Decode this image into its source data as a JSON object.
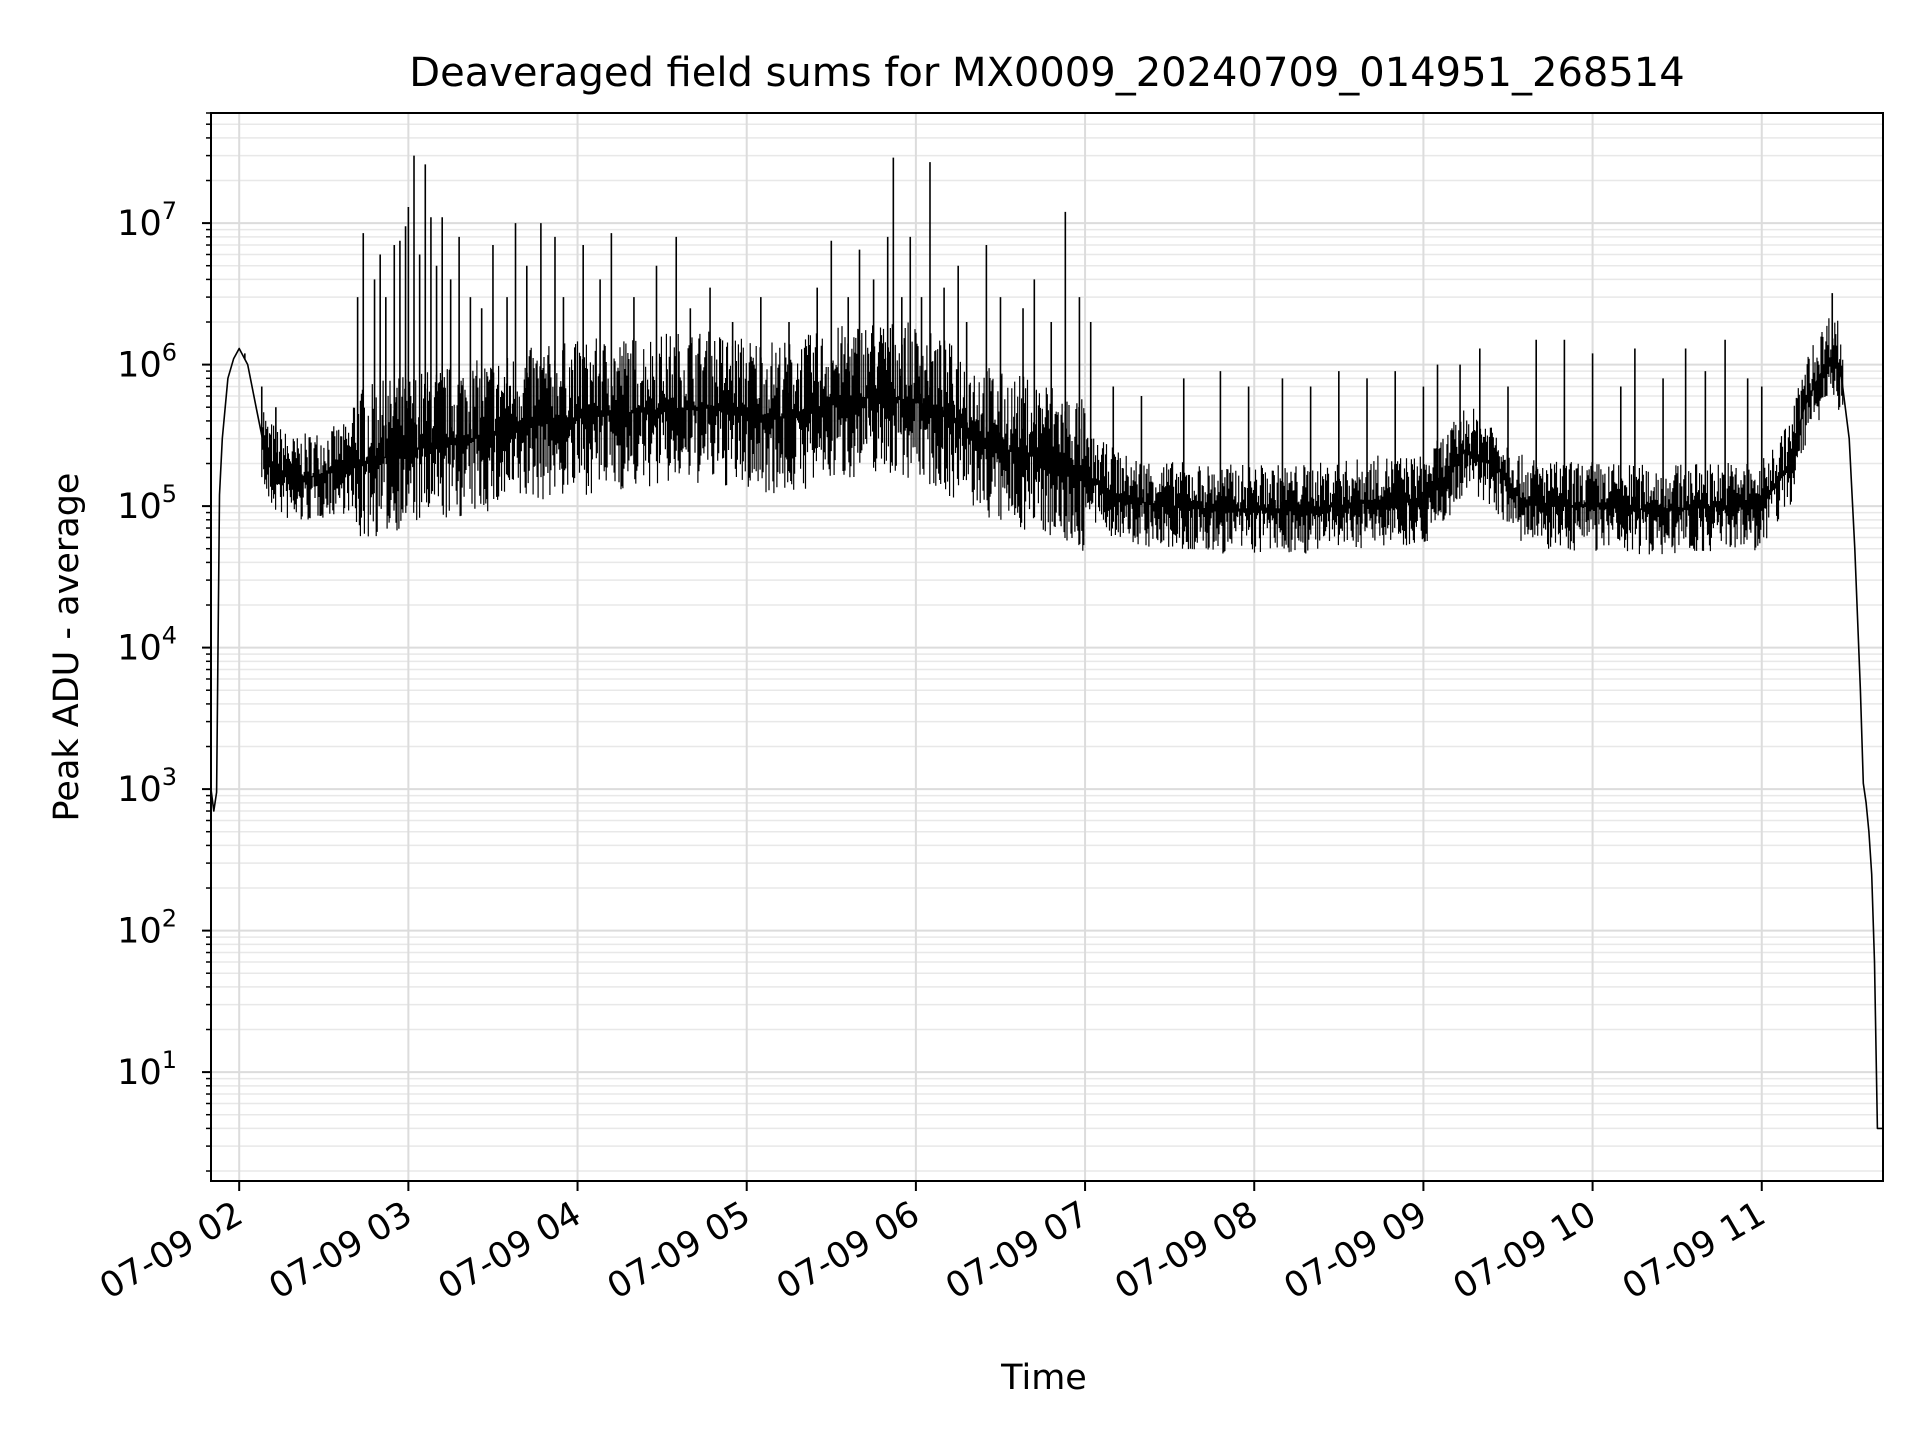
{
  "chart_data": {
    "type": "line",
    "title": "Deaveraged field sums for MX0009_20240709_014951_268514",
    "xlabel": "Time",
    "ylabel": "Peak ADU - average",
    "yscale": "log",
    "ylim": [
      1.7,
      60000000
    ],
    "xlim": [
      "07-09 01:50",
      "07-09 11:43"
    ],
    "grid": true,
    "line_color": "#000000",
    "x_ticks": [
      {
        "label": "07-09 02",
        "time": "07-09 02:00"
      },
      {
        "label": "07-09 03",
        "time": "07-09 03:00"
      },
      {
        "label": "07-09 04",
        "time": "07-09 04:00"
      },
      {
        "label": "07-09 05",
        "time": "07-09 05:00"
      },
      {
        "label": "07-09 06",
        "time": "07-09 06:00"
      },
      {
        "label": "07-09 07",
        "time": "07-09 07:00"
      },
      {
        "label": "07-09 08",
        "time": "07-09 08:00"
      },
      {
        "label": "07-09 09",
        "time": "07-09 09:00"
      },
      {
        "label": "07-09 10",
        "time": "07-09 10:00"
      },
      {
        "label": "07-09 11",
        "time": "07-09 11:00"
      }
    ],
    "y_ticks": [
      {
        "base": "10",
        "exp": "1",
        "value": 10
      },
      {
        "base": "10",
        "exp": "2",
        "value": 100
      },
      {
        "base": "10",
        "exp": "3",
        "value": 1000
      },
      {
        "base": "10",
        "exp": "4",
        "value": 10000
      },
      {
        "base": "10",
        "exp": "5",
        "value": 100000
      },
      {
        "base": "10",
        "exp": "6",
        "value": 1000000
      },
      {
        "base": "10",
        "exp": "7",
        "value": 10000000
      }
    ],
    "series": [
      {
        "points": [
          [
            "07-09 01:50",
            1000
          ],
          [
            "07-09 01:51",
            700
          ],
          [
            "07-09 01:52",
            950
          ],
          [
            "07-09 01:53",
            120000
          ],
          [
            "07-09 01:54",
            300000
          ],
          [
            "07-09 01:56",
            800000
          ],
          [
            "07-09 01:58",
            1100000
          ],
          [
            "07-09 02:00",
            1300000
          ],
          [
            "07-09 02:03",
            1000000
          ],
          [
            "07-09 02:06",
            500000
          ],
          [
            "07-09 02:10",
            200000
          ],
          [
            "07-09 02:20",
            150000
          ],
          [
            "07-09 02:30",
            170000
          ],
          [
            "07-09 02:45",
            200000
          ],
          [
            "07-09 03:00",
            250000
          ],
          [
            "07-09 03:15",
            280000
          ],
          [
            "07-09 03:30",
            320000
          ],
          [
            "07-09 03:45",
            380000
          ],
          [
            "07-09 04:00",
            420000
          ],
          [
            "07-09 04:15",
            450000
          ],
          [
            "07-09 04:30",
            480000
          ],
          [
            "07-09 04:45",
            500000
          ],
          [
            "07-09 05:00",
            450000
          ],
          [
            "07-09 05:15",
            420000
          ],
          [
            "07-09 05:30",
            520000
          ],
          [
            "07-09 05:45",
            600000
          ],
          [
            "07-09 06:00",
            550000
          ],
          [
            "07-09 06:15",
            380000
          ],
          [
            "07-09 06:30",
            250000
          ],
          [
            "07-09 06:45",
            230000
          ],
          [
            "07-09 07:00",
            160000
          ],
          [
            "07-09 07:15",
            110000
          ],
          [
            "07-09 07:30",
            100000
          ],
          [
            "07-09 07:45",
            95000
          ],
          [
            "07-09 08:00",
            95000
          ],
          [
            "07-09 08:15",
            95000
          ],
          [
            "07-09 08:30",
            100000
          ],
          [
            "07-09 08:45",
            110000
          ],
          [
            "07-09 09:00",
            110000
          ],
          [
            "07-09 09:10",
            180000
          ],
          [
            "07-09 09:15",
            250000
          ],
          [
            "07-09 09:25",
            200000
          ],
          [
            "07-09 09:35",
            110000
          ],
          [
            "07-09 09:45",
            100000
          ],
          [
            "07-09 10:00",
            100000
          ],
          [
            "07-09 10:15",
            95000
          ],
          [
            "07-09 10:30",
            95000
          ],
          [
            "07-09 10:45",
            100000
          ],
          [
            "07-09 11:00",
            100000
          ],
          [
            "07-09 11:10",
            200000
          ],
          [
            "07-09 11:15",
            500000
          ],
          [
            "07-09 11:20",
            800000
          ],
          [
            "07-09 11:24",
            1100000
          ],
          [
            "07-09 11:26",
            1150000
          ],
          [
            "07-09 11:28",
            900000
          ],
          [
            "07-09 11:31",
            300000
          ],
          [
            "07-09 11:33",
            50000
          ],
          [
            "07-09 11:35",
            5000
          ],
          [
            "07-09 11:36",
            1100
          ],
          [
            "07-09 11:37",
            800
          ],
          [
            "07-09 11:38",
            500
          ],
          [
            "07-09 11:39",
            250
          ],
          [
            "07-09 11:40",
            60
          ],
          [
            "07-09 11:41",
            4
          ],
          [
            "07-09 11:43",
            4
          ]
        ],
        "spikes": [
          [
            "07-09 02:02",
            1200000
          ],
          [
            "07-09 02:08",
            700000
          ],
          [
            "07-09 02:13",
            500000
          ],
          [
            "07-09 02:42",
            3000000
          ],
          [
            "07-09 02:44",
            8500000
          ],
          [
            "07-09 02:48",
            4000000
          ],
          [
            "07-09 02:50",
            6000000
          ],
          [
            "07-09 02:52",
            3000000
          ],
          [
            "07-09 02:55",
            7000000
          ],
          [
            "07-09 02:57",
            7500000
          ],
          [
            "07-09 02:59",
            9500000
          ],
          [
            "07-09 03:00",
            13000000
          ],
          [
            "07-09 03:02",
            30000000
          ],
          [
            "07-09 03:04",
            6000000
          ],
          [
            "07-09 03:06",
            26000000
          ],
          [
            "07-09 03:08",
            11000000
          ],
          [
            "07-09 03:10",
            5000000
          ],
          [
            "07-09 03:12",
            11000000
          ],
          [
            "07-09 03:15",
            4000000
          ],
          [
            "07-09 03:18",
            8000000
          ],
          [
            "07-09 03:22",
            3000000
          ],
          [
            "07-09 03:26",
            2500000
          ],
          [
            "07-09 03:30",
            7000000
          ],
          [
            "07-09 03:35",
            3000000
          ],
          [
            "07-09 03:38",
            10000000
          ],
          [
            "07-09 03:42",
            5000000
          ],
          [
            "07-09 03:47",
            10000000
          ],
          [
            "07-09 03:52",
            8000000
          ],
          [
            "07-09 03:55",
            3000000
          ],
          [
            "07-09 04:02",
            7000000
          ],
          [
            "07-09 04:08",
            4000000
          ],
          [
            "07-09 04:12",
            8500000
          ],
          [
            "07-09 04:20",
            3000000
          ],
          [
            "07-09 04:28",
            5000000
          ],
          [
            "07-09 04:35",
            8000000
          ],
          [
            "07-09 04:40",
            2500000
          ],
          [
            "07-09 04:47",
            3500000
          ],
          [
            "07-09 04:55",
            2000000
          ],
          [
            "07-09 05:05",
            3000000
          ],
          [
            "07-09 05:15",
            2000000
          ],
          [
            "07-09 05:25",
            3500000
          ],
          [
            "07-09 05:30",
            7500000
          ],
          [
            "07-09 05:36",
            3000000
          ],
          [
            "07-09 05:40",
            6500000
          ],
          [
            "07-09 05:45",
            4000000
          ],
          [
            "07-09 05:50",
            8000000
          ],
          [
            "07-09 05:52",
            29000000
          ],
          [
            "07-09 05:55",
            3000000
          ],
          [
            "07-09 05:58",
            8000000
          ],
          [
            "07-09 06:02",
            3000000
          ],
          [
            "07-09 06:05",
            27000000
          ],
          [
            "07-09 06:10",
            3500000
          ],
          [
            "07-09 06:15",
            5000000
          ],
          [
            "07-09 06:18",
            2000000
          ],
          [
            "07-09 06:25",
            7000000
          ],
          [
            "07-09 06:30",
            3000000
          ],
          [
            "07-09 06:38",
            2500000
          ],
          [
            "07-09 06:42",
            4000000
          ],
          [
            "07-09 06:48",
            2000000
          ],
          [
            "07-09 06:53",
            12000000
          ],
          [
            "07-09 06:58",
            3000000
          ],
          [
            "07-09 07:02",
            2000000
          ],
          [
            "07-09 07:10",
            700000
          ],
          [
            "07-09 07:20",
            600000
          ],
          [
            "07-09 07:35",
            800000
          ],
          [
            "07-09 07:48",
            900000
          ],
          [
            "07-09 07:58",
            700000
          ],
          [
            "07-09 08:10",
            800000
          ],
          [
            "07-09 08:20",
            700000
          ],
          [
            "07-09 08:30",
            900000
          ],
          [
            "07-09 08:40",
            800000
          ],
          [
            "07-09 08:50",
            900000
          ],
          [
            "07-09 09:00",
            700000
          ],
          [
            "07-09 09:05",
            1000000
          ],
          [
            "07-09 09:13",
            1000000
          ],
          [
            "07-09 09:20",
            1300000
          ],
          [
            "07-09 09:30",
            700000
          ],
          [
            "07-09 09:40",
            1500000
          ],
          [
            "07-09 09:50",
            1500000
          ],
          [
            "07-09 10:00",
            1200000
          ],
          [
            "07-09 10:10",
            700000
          ],
          [
            "07-09 10:15",
            1300000
          ],
          [
            "07-09 10:25",
            800000
          ],
          [
            "07-09 10:33",
            1300000
          ],
          [
            "07-09 10:40",
            900000
          ],
          [
            "07-09 10:47",
            1500000
          ],
          [
            "07-09 10:55",
            800000
          ],
          [
            "07-09 11:00",
            700000
          ],
          [
            "07-09 11:25",
            3200000
          ]
        ]
      }
    ]
  }
}
